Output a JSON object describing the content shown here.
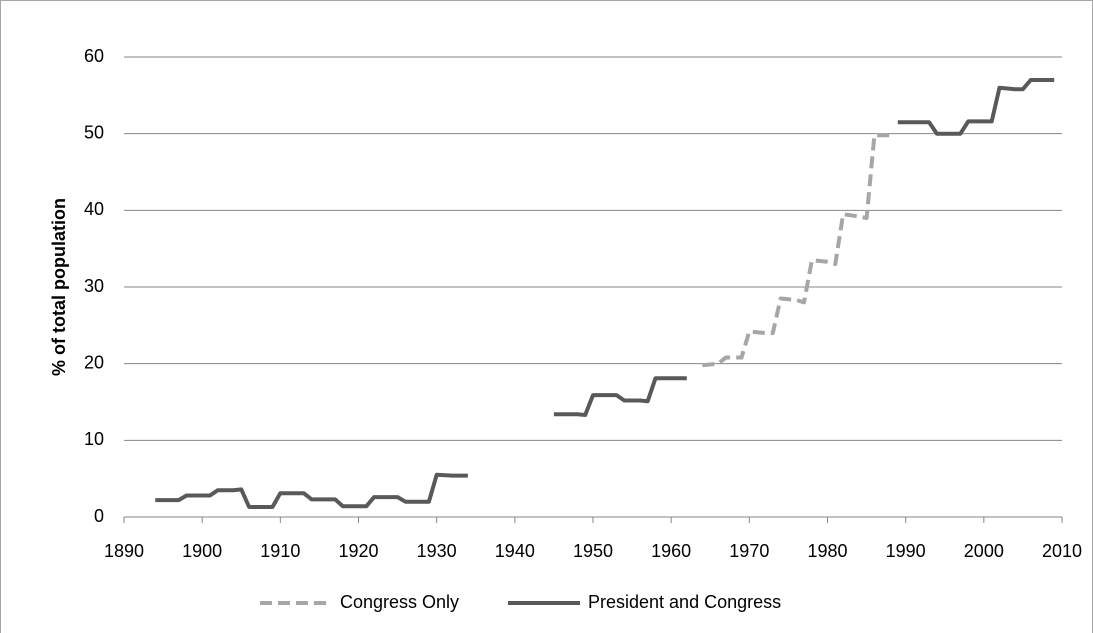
{
  "chart_data": {
    "type": "line",
    "y_label": "% of total population",
    "xlim": [
      1890,
      2010
    ],
    "xticks": [
      1890,
      1900,
      1910,
      1920,
      1930,
      1940,
      1950,
      1960,
      1970,
      1980,
      1990,
      2000,
      2010
    ],
    "ylim": [
      0,
      60
    ],
    "yticks": [
      0,
      10,
      20,
      30,
      40,
      50,
      60
    ],
    "grid": true,
    "legend": "bottom",
    "series": [
      {
        "name": "Congress Only",
        "color": "#a6a6a6",
        "dashed": true,
        "x": [
          1964,
          1966,
          1967,
          1969,
          1970,
          1972,
          1973,
          1974,
          1976,
          1977,
          1978,
          1980,
          1981,
          1982,
          1984,
          1985,
          1986,
          1988
        ],
        "values": [
          19.8,
          20.0,
          20.8,
          20.8,
          24.2,
          24.0,
          24.0,
          28.5,
          28.3,
          28.0,
          33.5,
          33.3,
          33.0,
          39.5,
          39.2,
          39.0,
          49.8,
          49.8
        ]
      },
      {
        "name": "President and Congress",
        "color": "#595959",
        "dashed": false,
        "x": [
          1894,
          1896,
          1897,
          1898,
          1900,
          1901,
          1902,
          1904,
          1905,
          1906,
          1908,
          1909,
          1910,
          1912,
          1913,
          1914,
          1916,
          1917,
          1918,
          1920,
          1921,
          1922,
          1924,
          1925,
          1926,
          1928,
          1929,
          1930,
          1932,
          1934,
          1940,
          1945,
          1948,
          1949,
          1950,
          1952,
          1953,
          1954,
          1956,
          1957,
          1958,
          1960,
          1962,
          1975,
          1989,
          1992,
          1993,
          1994,
          1996,
          1997,
          1998,
          2000,
          2001,
          2002,
          2004,
          2005,
          2006,
          2008,
          2009
        ],
        "values": [
          2.2,
          2.2,
          2.2,
          2.8,
          2.8,
          2.8,
          3.5,
          3.5,
          3.6,
          1.3,
          1.3,
          1.3,
          3.1,
          3.1,
          3.1,
          2.3,
          2.3,
          2.3,
          1.4,
          1.4,
          1.4,
          2.6,
          2.6,
          2.6,
          2.0,
          2.0,
          2.0,
          5.5,
          5.4,
          5.4,
          null,
          13.4,
          13.4,
          13.3,
          15.9,
          15.9,
          15.9,
          15.2,
          15.2,
          15.1,
          18.1,
          18.1,
          18.1,
          null,
          51.5,
          51.5,
          51.5,
          50.0,
          50.0,
          50.0,
          51.6,
          51.6,
          51.6,
          56.0,
          55.8,
          55.8,
          57.0,
          57.0,
          57.0
        ]
      }
    ]
  }
}
